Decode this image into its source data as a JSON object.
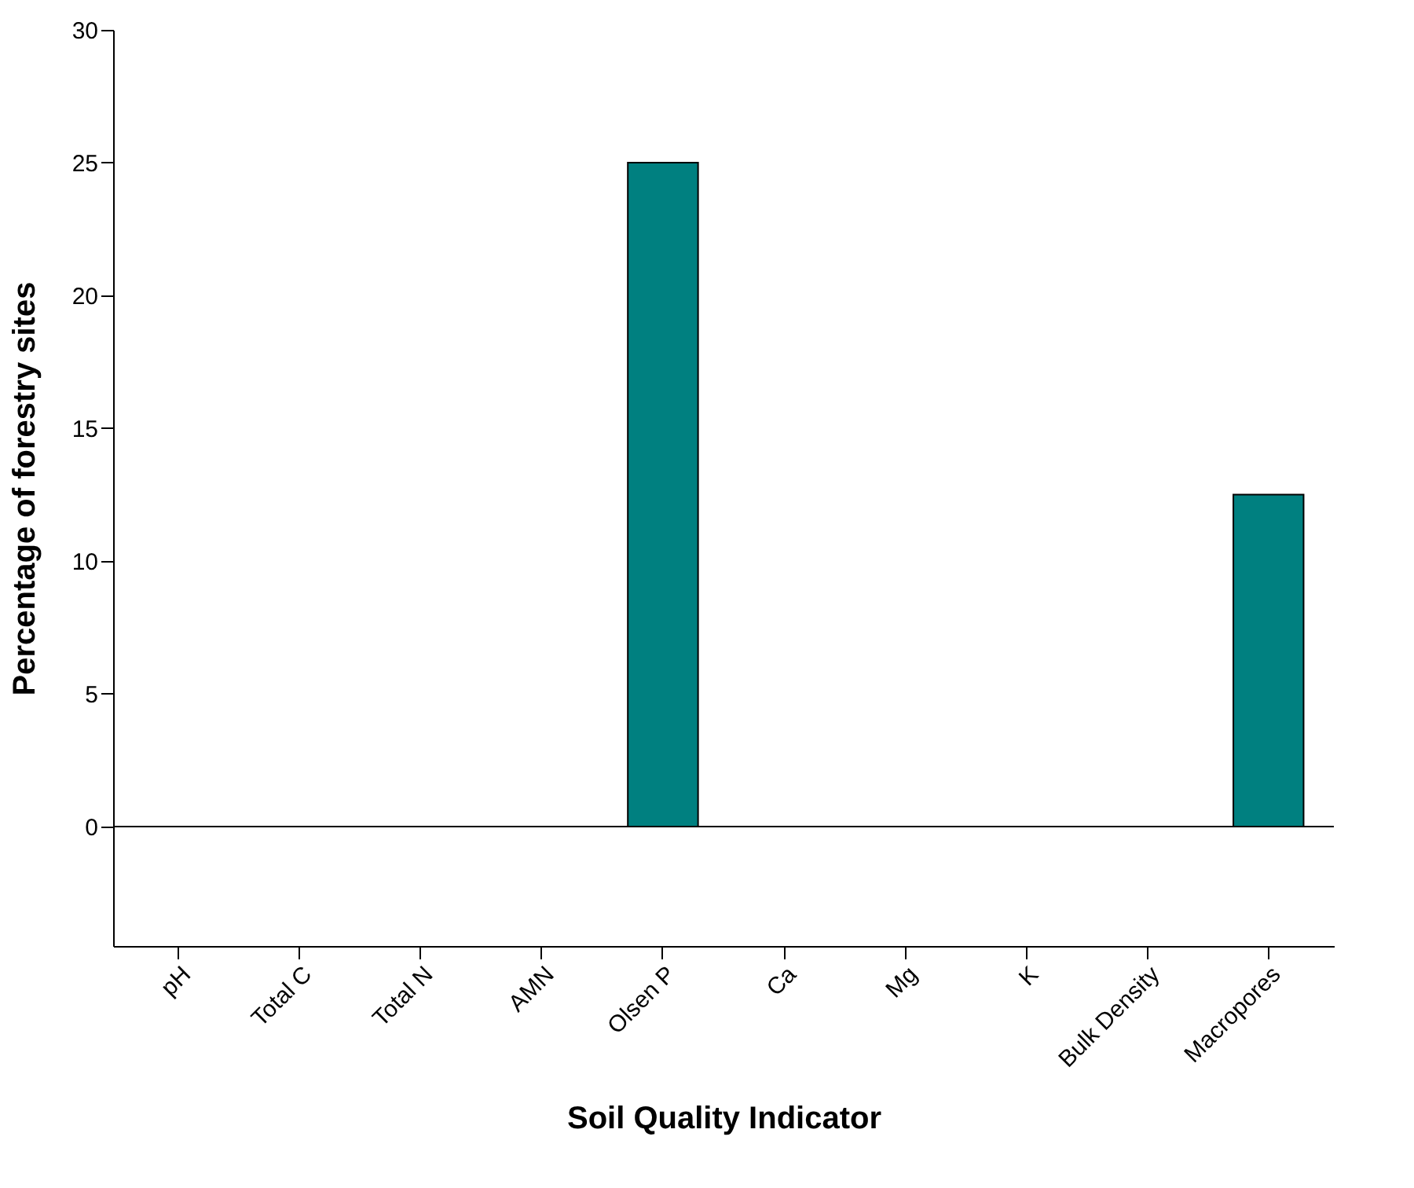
{
  "chart_data": {
    "type": "bar",
    "xlabel": "Soil Quality Indicator",
    "ylabel": "Percentage of forestry sites",
    "categories": [
      "pH",
      "Total C",
      "Total N",
      "AMN",
      "Olsen P",
      "Ca",
      "Mg",
      "K",
      "Bulk Density",
      "Macropores"
    ],
    "values": [
      0,
      0,
      0,
      0,
      25,
      0,
      0,
      0,
      0,
      12.5
    ],
    "color": "#008080",
    "ylim": [
      -4.5,
      30
    ],
    "yticks": [
      0,
      5,
      10,
      15,
      20,
      25,
      30
    ],
    "grid": false,
    "ref_lines": [
      {
        "axis": "y",
        "value": 0,
        "color": "#000000"
      }
    ]
  }
}
